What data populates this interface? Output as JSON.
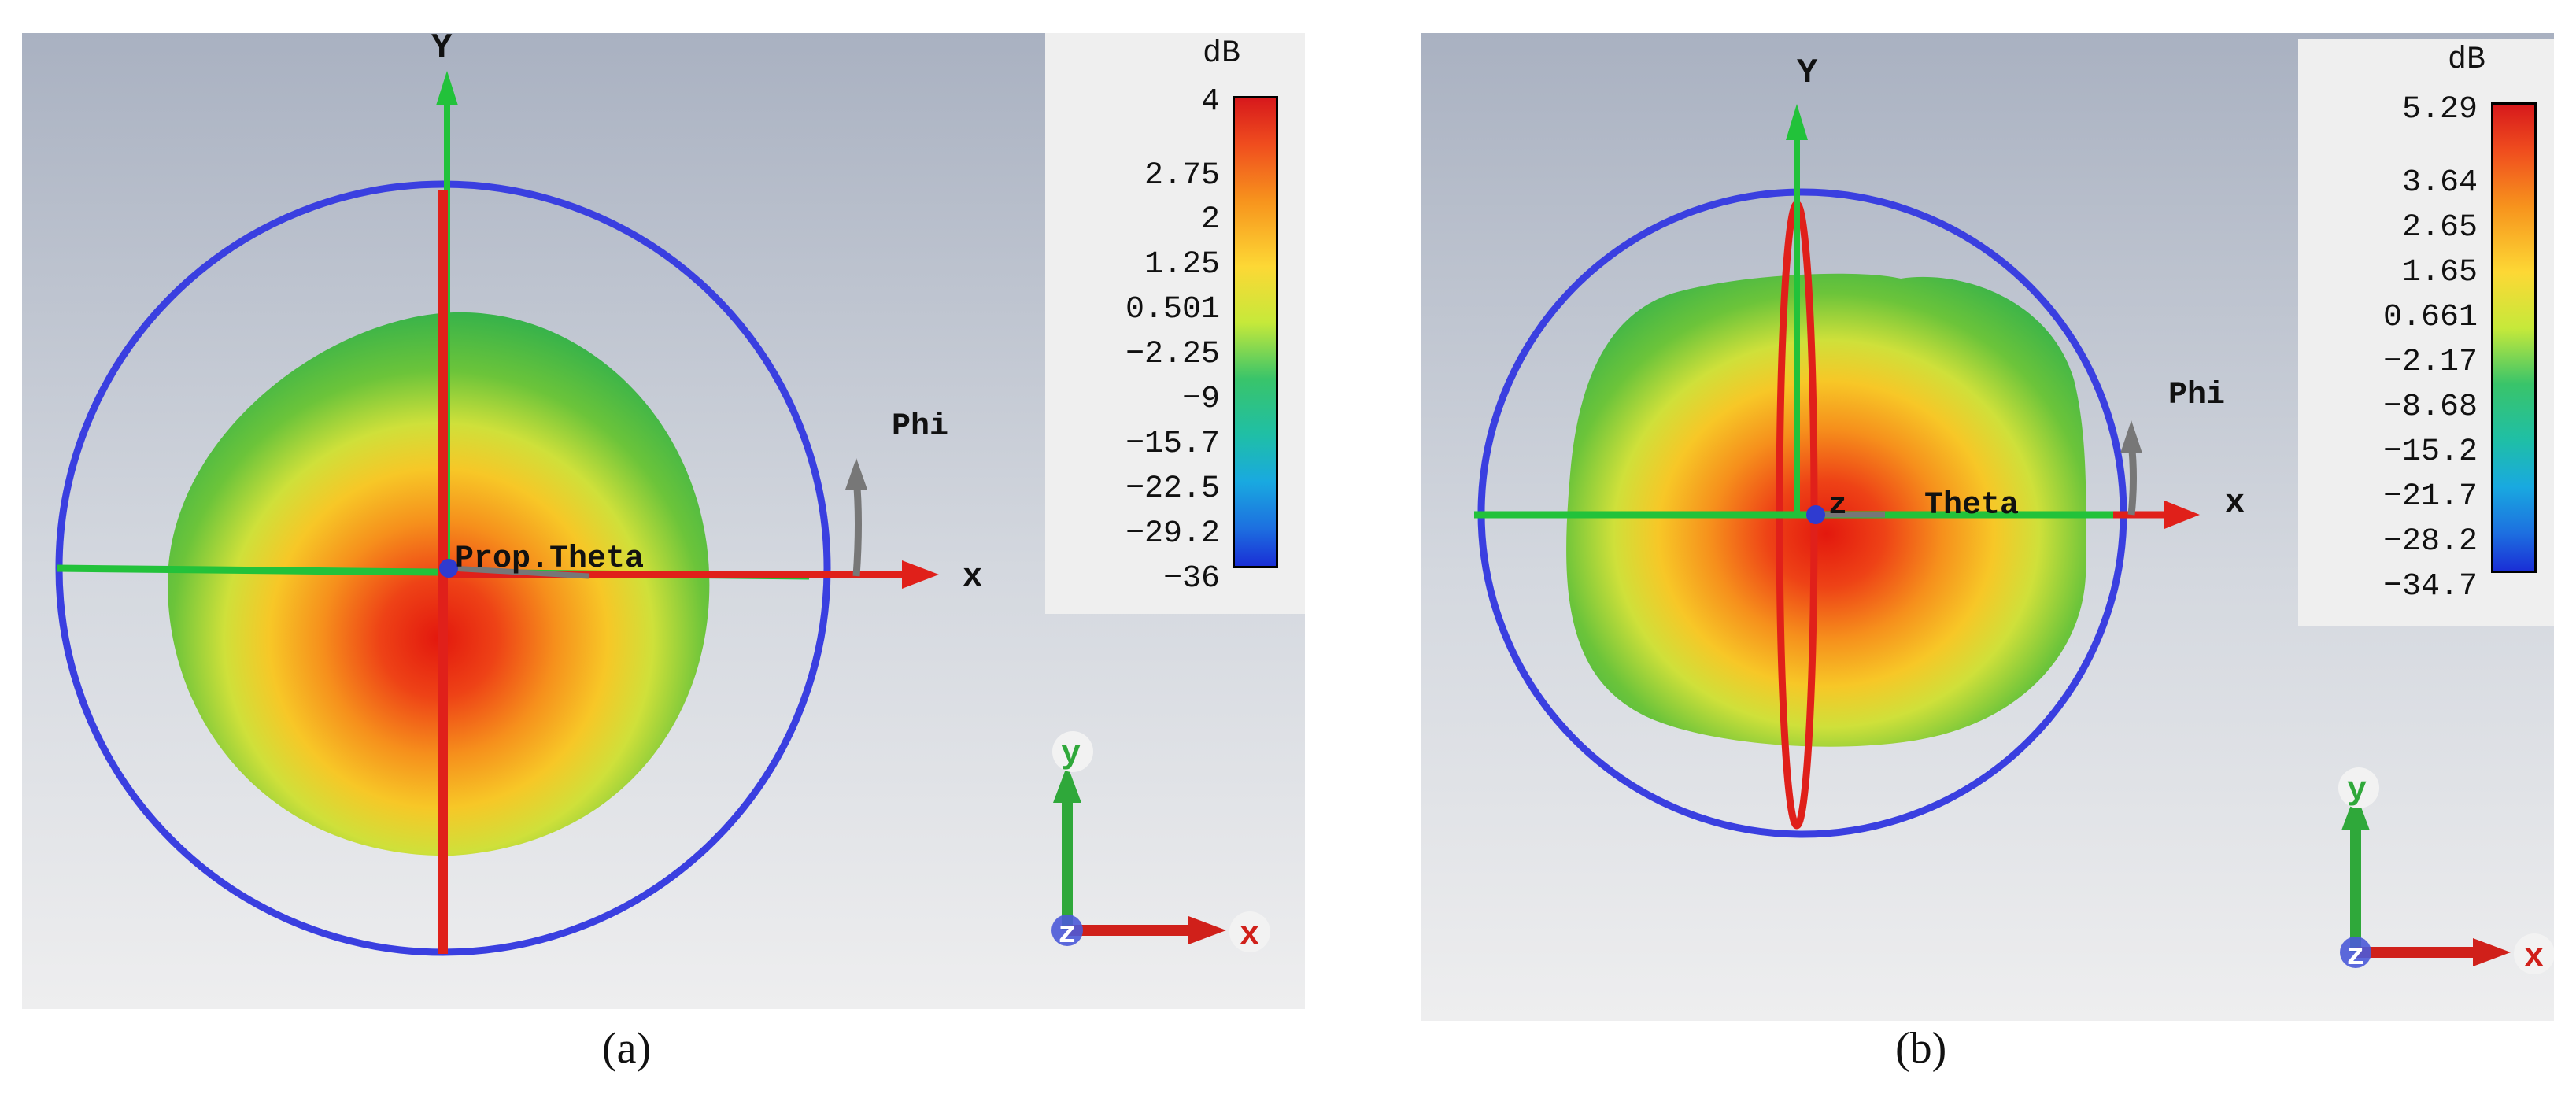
{
  "panels": [
    {
      "caption": "(a)",
      "legend": {
        "unit": "dB",
        "ticks": [
          "4",
          "2.75",
          "2",
          "1.25",
          "0.501",
          "−2.25",
          "−9",
          "−15.7",
          "−22.5",
          "−29.2",
          "−36"
        ]
      },
      "labels": {
        "y": "Y",
        "x": "x",
        "phi": "Phi",
        "center": "Prop.Theta",
        "triad_y": "y",
        "triad_z": "z",
        "triad_x": "x"
      }
    },
    {
      "caption": "(b)",
      "legend": {
        "unit": "dB",
        "ticks": [
          "5.29",
          "3.64",
          "2.65",
          "1.65",
          "0.661",
          "−2.17",
          "−8.68",
          "−15.2",
          "−21.7",
          "−28.2",
          "−34.7"
        ]
      },
      "labels": {
        "y": "Y",
        "x": "x",
        "phi": "Phi",
        "center_z": "z",
        "theta": "Theta",
        "triad_y": "y",
        "triad_z": "z",
        "triad_x": "x"
      }
    }
  ],
  "colors": {
    "sphere": "#3a3fe0",
    "axis_green": "#22c23a",
    "axis_red": "#e0201a",
    "phi_arrow": "#777777"
  }
}
